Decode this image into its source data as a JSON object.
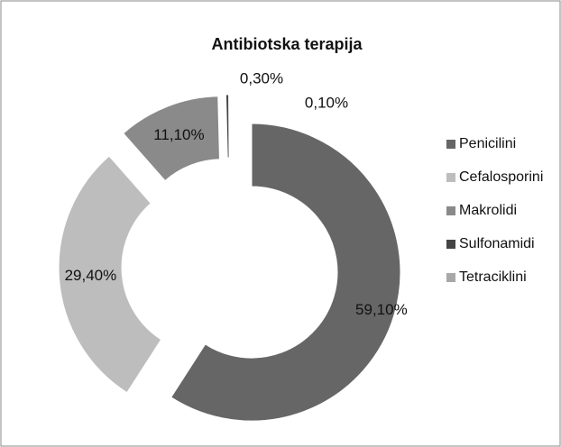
{
  "chart_data": {
    "type": "donut",
    "title": "Antibiotska terapija",
    "categories": [
      "Penicilini",
      "Cefalosporini",
      "Makrolidi",
      "Sulfonamidi",
      "Tetraciklini"
    ],
    "values": [
      59.1,
      29.4,
      11.1,
      0.3,
      0.1
    ],
    "value_labels": [
      "59,10%",
      "29,40%",
      "11,10%",
      "0,30%",
      "0,10%"
    ],
    "colors": [
      "#666666",
      "#bdbdbd",
      "#8a8a8a",
      "#444444",
      "#a8a8a8"
    ],
    "legend": "right"
  }
}
